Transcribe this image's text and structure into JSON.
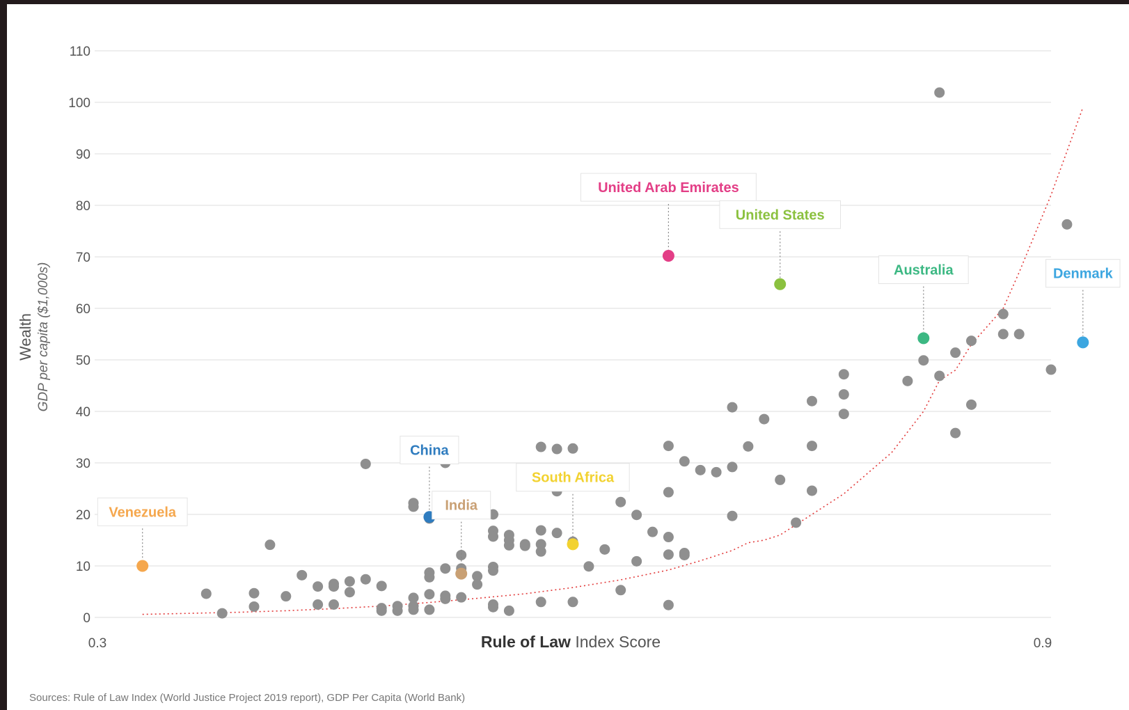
{
  "colors": {
    "point": "#8f8f8f",
    "grid": "#dddddd",
    "trend": "#e23a3a",
    "leader": "#888888",
    "label_bg": "#ffffff",
    "label_border": "#e4e4e4"
  },
  "chart_data": {
    "type": "scatter",
    "title": "",
    "xlabel_bold": "Rule of Law",
    "xlabel_rest": " Index Score",
    "ylabel_main": "Wealth",
    "ylabel_sub": "GDP per capita ($1,000s)",
    "xlim": [
      0.3,
      0.9
    ],
    "ylim": [
      0,
      110
    ],
    "x_tick_labels": [
      {
        "value": 0.3,
        "label": "0.3"
      },
      {
        "value": 0.9,
        "label": "0.9"
      }
    ],
    "y_ticks": [
      0,
      10,
      20,
      30,
      40,
      50,
      60,
      70,
      80,
      90,
      100,
      110
    ],
    "grid": "horizontal",
    "highlighted": [
      {
        "name": "Venezuela",
        "x": 0.33,
        "y": 10,
        "color": "#f5a74d",
        "label_y": 20.5
      },
      {
        "name": "China",
        "x": 0.51,
        "y": 19.5,
        "color": "#2f7cbf",
        "label_y": 32.5
      },
      {
        "name": "India",
        "x": 0.53,
        "y": 8.5,
        "color": "#c9a074",
        "label_y": 21.8
      },
      {
        "name": "South Africa",
        "x": 0.6,
        "y": 14.2,
        "color": "#f2d230",
        "label_y": 27.2
      },
      {
        "name": "United Arab Emirates",
        "x": 0.66,
        "y": 70.2,
        "color": "#e33e86",
        "label_y": 83.5
      },
      {
        "name": "United States",
        "x": 0.73,
        "y": 64.7,
        "color": "#8bc13f",
        "label_y": 78.2
      },
      {
        "name": "Australia",
        "x": 0.82,
        "y": 54.2,
        "color": "#3cb883",
        "label_y": 67.5
      },
      {
        "name": "Denmark",
        "x": 0.92,
        "y": 53.4,
        "color": "#3ca6e0",
        "label_y": 66.8
      }
    ],
    "points": [
      [
        0.37,
        4.6
      ],
      [
        0.38,
        0.8
      ],
      [
        0.4,
        4.7
      ],
      [
        0.4,
        2.1
      ],
      [
        0.41,
        14.1
      ],
      [
        0.42,
        4.1
      ],
      [
        0.43,
        8.2
      ],
      [
        0.44,
        6.0
      ],
      [
        0.44,
        2.5
      ],
      [
        0.45,
        6.5
      ],
      [
        0.45,
        6.0
      ],
      [
        0.45,
        2.5
      ],
      [
        0.46,
        7.0
      ],
      [
        0.46,
        4.9
      ],
      [
        0.47,
        7.4
      ],
      [
        0.47,
        29.8
      ],
      [
        0.48,
        6.1
      ],
      [
        0.48,
        1.8
      ],
      [
        0.48,
        1.3
      ],
      [
        0.49,
        2.2
      ],
      [
        0.49,
        1.3
      ],
      [
        0.5,
        3.8
      ],
      [
        0.5,
        2.2
      ],
      [
        0.5,
        1.5
      ],
      [
        0.5,
        22.2
      ],
      [
        0.5,
        21.5
      ],
      [
        0.51,
        19.2
      ],
      [
        0.51,
        8.7
      ],
      [
        0.51,
        7.8
      ],
      [
        0.51,
        4.5
      ],
      [
        0.51,
        1.5
      ],
      [
        0.52,
        30.0
      ],
      [
        0.52,
        20.5
      ],
      [
        0.52,
        9.5
      ],
      [
        0.52,
        4.2
      ],
      [
        0.52,
        3.6
      ],
      [
        0.53,
        12.1
      ],
      [
        0.53,
        9.5
      ],
      [
        0.53,
        8.4
      ],
      [
        0.53,
        3.9
      ],
      [
        0.54,
        8.0
      ],
      [
        0.54,
        6.4
      ],
      [
        0.55,
        20.0
      ],
      [
        0.55,
        16.8
      ],
      [
        0.55,
        15.7
      ],
      [
        0.55,
        9.8
      ],
      [
        0.55,
        9.1
      ],
      [
        0.55,
        2.5
      ],
      [
        0.55,
        2.0
      ],
      [
        0.56,
        16.0
      ],
      [
        0.56,
        15.0
      ],
      [
        0.56,
        14.0
      ],
      [
        0.56,
        1.3
      ],
      [
        0.57,
        28.8
      ],
      [
        0.57,
        28.2
      ],
      [
        0.57,
        14.2
      ],
      [
        0.57,
        13.9
      ],
      [
        0.58,
        33.1
      ],
      [
        0.58,
        16.9
      ],
      [
        0.58,
        14.2
      ],
      [
        0.58,
        12.8
      ],
      [
        0.58,
        3.0
      ],
      [
        0.59,
        32.7
      ],
      [
        0.59,
        24.5
      ],
      [
        0.59,
        16.4
      ],
      [
        0.6,
        32.8
      ],
      [
        0.6,
        14.7
      ],
      [
        0.6,
        3.0
      ],
      [
        0.61,
        9.9
      ],
      [
        0.62,
        13.2
      ],
      [
        0.63,
        22.4
      ],
      [
        0.63,
        5.3
      ],
      [
        0.64,
        19.9
      ],
      [
        0.64,
        10.9
      ],
      [
        0.65,
        16.6
      ],
      [
        0.66,
        33.3
      ],
      [
        0.66,
        24.3
      ],
      [
        0.66,
        15.6
      ],
      [
        0.66,
        12.2
      ],
      [
        0.66,
        2.4
      ],
      [
        0.67,
        30.3
      ],
      [
        0.67,
        12.5
      ],
      [
        0.67,
        12.1
      ],
      [
        0.68,
        28.6
      ],
      [
        0.69,
        28.2
      ],
      [
        0.7,
        40.8
      ],
      [
        0.7,
        29.2
      ],
      [
        0.7,
        19.7
      ],
      [
        0.71,
        33.2
      ],
      [
        0.72,
        38.5
      ],
      [
        0.73,
        26.7
      ],
      [
        0.74,
        18.4
      ],
      [
        0.75,
        42.0
      ],
      [
        0.75,
        33.3
      ],
      [
        0.75,
        24.6
      ],
      [
        0.77,
        47.2
      ],
      [
        0.77,
        43.3
      ],
      [
        0.77,
        39.5
      ],
      [
        0.8,
        67.6
      ],
      [
        0.81,
        45.9
      ],
      [
        0.82,
        49.9
      ],
      [
        0.83,
        101.9
      ],
      [
        0.83,
        46.9
      ],
      [
        0.84,
        51.4
      ],
      [
        0.84,
        35.8
      ],
      [
        0.85,
        53.7
      ],
      [
        0.85,
        41.3
      ],
      [
        0.87,
        58.9
      ],
      [
        0.87,
        55.0
      ],
      [
        0.88,
        55.0
      ],
      [
        0.9,
        48.1
      ],
      [
        0.91,
        76.3
      ]
    ],
    "trend": [
      [
        0.33,
        0.6
      ],
      [
        0.36,
        0.8
      ],
      [
        0.39,
        1.0
      ],
      [
        0.42,
        1.3
      ],
      [
        0.45,
        1.7
      ],
      [
        0.48,
        2.2
      ],
      [
        0.51,
        2.9
      ],
      [
        0.54,
        3.7
      ],
      [
        0.57,
        4.6
      ],
      [
        0.6,
        5.8
      ],
      [
        0.63,
        7.3
      ],
      [
        0.66,
        9.2
      ],
      [
        0.68,
        11.0
      ],
      [
        0.7,
        13.0
      ],
      [
        0.71,
        14.5
      ],
      [
        0.72,
        15.0
      ],
      [
        0.73,
        16.0
      ],
      [
        0.75,
        20.0
      ],
      [
        0.77,
        24.0
      ],
      [
        0.8,
        32.0
      ],
      [
        0.82,
        40.0
      ],
      [
        0.83,
        46.0
      ],
      [
        0.84,
        48.0
      ],
      [
        0.85,
        53.0
      ],
      [
        0.87,
        60.0
      ],
      [
        0.88,
        67.0
      ],
      [
        0.9,
        82.0
      ],
      [
        0.92,
        99.0
      ]
    ],
    "source": "Sources: Rule of Law Index (World Justice Project 2019 report), GDP Per Capita (World Bank)"
  }
}
